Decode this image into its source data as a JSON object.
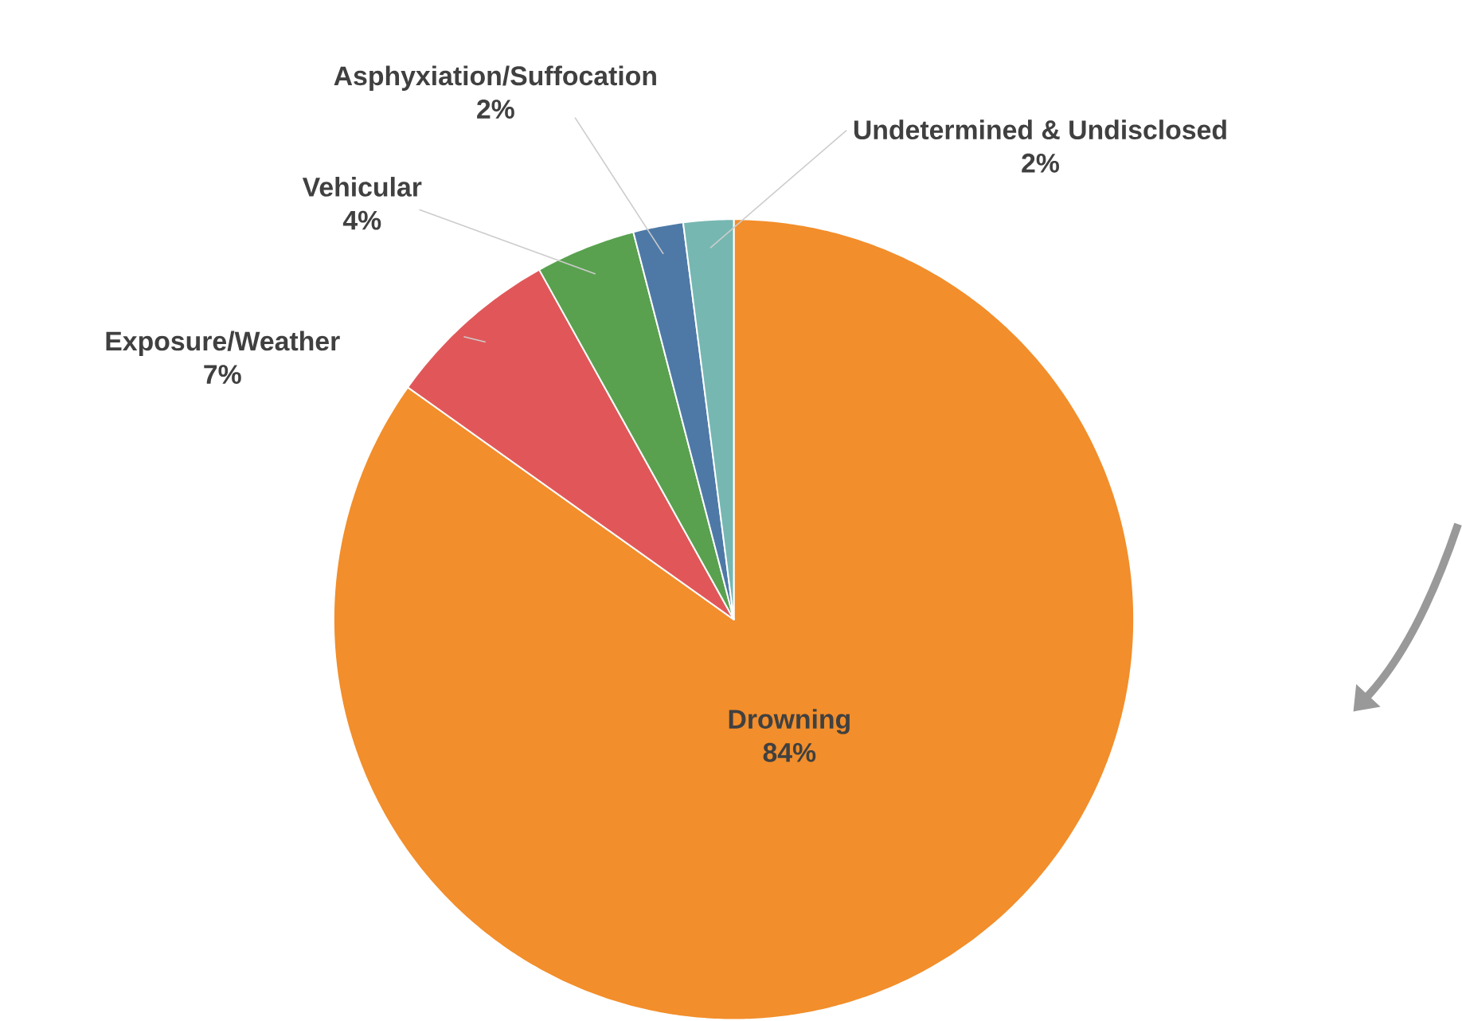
{
  "chart_data": {
    "type": "pie",
    "categories": [
      "Drowning",
      "Exposure/Weather",
      "Vehicular",
      "Asphyxiation/Suffocation",
      "Undetermined & Undisclosed"
    ],
    "values": [
      84,
      7,
      4,
      2,
      2
    ],
    "value_labels": [
      "84%",
      "7%",
      "4%",
      "2%",
      "2%"
    ],
    "colors": [
      "#f28e2b",
      "#e15759",
      "#59a14f",
      "#4e79a7",
      "#76b7b2"
    ]
  }
}
